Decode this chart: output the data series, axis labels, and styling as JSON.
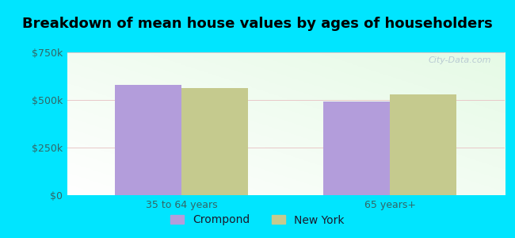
{
  "title": "Breakdown of mean house values by ages of householders",
  "categories": [
    "35 to 64 years",
    "65 years+"
  ],
  "series": [
    {
      "name": "Crompond",
      "values": [
        580000,
        490000
      ],
      "color": "#b39ddb"
    },
    {
      "name": "New York",
      "values": [
        563000,
        528000
      ],
      "color": "#c5ca8e"
    }
  ],
  "ylim": [
    0,
    750000
  ],
  "yticks": [
    0,
    250000,
    500000,
    750000
  ],
  "ytick_labels": [
    "$0",
    "$250k",
    "$500k",
    "$750k"
  ],
  "background_color": "#00e5ff",
  "bar_width": 0.32,
  "title_fontsize": 13,
  "legend_fontsize": 10,
  "tick_fontsize": 9,
  "watermark": "City-Data.com"
}
